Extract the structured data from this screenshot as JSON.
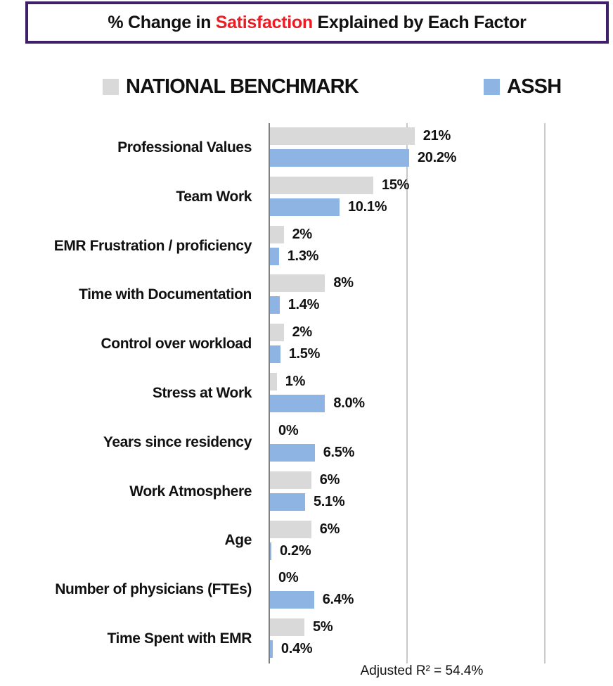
{
  "title": {
    "prefix": "% Change in ",
    "highlight": "Satisfaction",
    "suffix": " Explained by Each Factor",
    "highlight_color": "#EC1C24",
    "border_color": "#3E1F68"
  },
  "legend": [
    {
      "label": "NATIONAL BENCHMARK",
      "color": "#D9D9D9"
    },
    {
      "label": "ASSH",
      "color": "#8DB4E2"
    }
  ],
  "chart_data": {
    "type": "bar",
    "orientation": "horizontal",
    "categories": [
      "Professional Values",
      "Team Work",
      "EMR Frustration / proficiency",
      "Time with Documentation",
      "Control over workload",
      "Stress at Work",
      "Years since residency",
      "Work Atmosphere",
      "Age",
      "Number of physicians (FTEs)",
      "Time Spent with EMR"
    ],
    "series": [
      {
        "name": "NATIONAL BENCHMARK",
        "color": "#D9D9D9",
        "values": [
          21,
          15,
          2,
          8,
          2,
          1,
          0,
          6,
          6,
          0,
          5
        ],
        "labels": [
          "21%",
          "15%",
          "2%",
          "8%",
          "2%",
          "1%",
          "0%",
          "6%",
          "6%",
          "0%",
          "5%"
        ]
      },
      {
        "name": "ASSH",
        "color": "#8DB4E2",
        "values": [
          20.2,
          10.1,
          1.3,
          1.4,
          1.5,
          8.0,
          6.5,
          5.1,
          0.2,
          6.4,
          0.4
        ],
        "labels": [
          "20.2%",
          "10.1%",
          "1.3%",
          "1.4%",
          "1.5%",
          "8.0%",
          "6.5%",
          "5.1%",
          "0.2%",
          "6.4%",
          "0.4%"
        ]
      }
    ],
    "xlim": [
      0,
      50
    ],
    "gridlines_pct": [
      20,
      40
    ],
    "axis_color": "#7F7F7F",
    "gridline_color": "#C9C9C9",
    "grid": "vertical-only",
    "legend_position": "top",
    "value_labels_shown": true
  },
  "footer": {
    "text": "Adjusted R² = 54.4%"
  }
}
